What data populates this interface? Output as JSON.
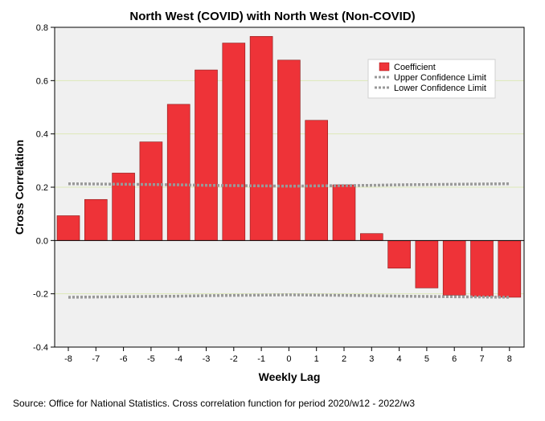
{
  "chart_data": {
    "type": "bar",
    "title": "North West (COVID) with North West (Non-COVID)",
    "xlabel": "Weekly Lag",
    "ylabel": "Cross Correlation",
    "ylim": [
      -0.4,
      0.8
    ],
    "yticks": [
      "0.8",
      "0.6",
      "0.4",
      "0.2",
      "0.0",
      "-0.2",
      "-0.4"
    ],
    "ytick_values": [
      0.8,
      0.6,
      0.4,
      0.2,
      0.0,
      -0.2,
      -0.4
    ],
    "categories": [
      "-8",
      "-7",
      "-6",
      "-5",
      "-4",
      "-3",
      "-2",
      "-1",
      "0",
      "1",
      "2",
      "3",
      "4",
      "5",
      "6",
      "7",
      "8"
    ],
    "series": [
      {
        "name": "Coefficient",
        "kind": "bar",
        "color": "#ee3338",
        "values": [
          0.093,
          0.154,
          0.253,
          0.37,
          0.511,
          0.64,
          0.741,
          0.766,
          0.677,
          0.451,
          0.209,
          0.026,
          -0.104,
          -0.178,
          -0.205,
          -0.21,
          -0.213
        ]
      },
      {
        "name": "Upper Confidence Limit",
        "kind": "dotted-line",
        "color": "#999999",
        "values": [
          0.213,
          0.212,
          0.211,
          0.21,
          0.209,
          0.207,
          0.206,
          0.205,
          0.204,
          0.205,
          0.206,
          0.207,
          0.209,
          0.21,
          0.211,
          0.212,
          0.213
        ]
      },
      {
        "name": "Lower Confidence Limit",
        "kind": "dotted-line",
        "color": "#999999",
        "values": [
          -0.213,
          -0.212,
          -0.211,
          -0.21,
          -0.209,
          -0.207,
          -0.206,
          -0.205,
          -0.204,
          -0.205,
          -0.206,
          -0.207,
          -0.209,
          -0.21,
          -0.211,
          -0.212,
          -0.213
        ]
      }
    ],
    "grid": true,
    "legend": "top-right",
    "legend_entries": [
      "Coefficient",
      "Upper Confidence Limit",
      "Lower Confidence Limit"
    ]
  },
  "source": "Source: Office for National Statistics. Cross correlation function for period 2020/w12 - 2022/w3"
}
